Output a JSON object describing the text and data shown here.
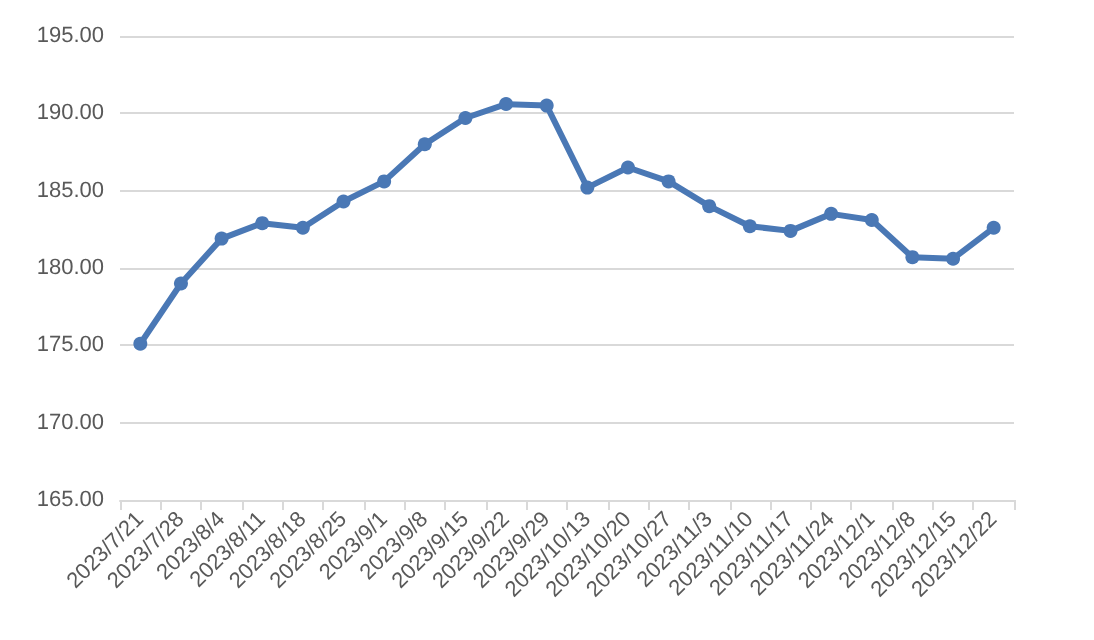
{
  "chart_data": {
    "type": "line",
    "categories": [
      "2023/7/21",
      "2023/7/28",
      "2023/8/4",
      "2023/8/11",
      "2023/8/18",
      "2023/8/25",
      "2023/9/1",
      "2023/9/8",
      "2023/9/15",
      "2023/9/22",
      "2023/9/29",
      "2023/10/13",
      "2023/10/20",
      "2023/10/27",
      "2023/11/3",
      "2023/11/10",
      "2023/11/17",
      "2023/11/24",
      "2023/12/1",
      "2023/12/8",
      "2023/12/15",
      "2023/12/22"
    ],
    "series": [
      {
        "color": "#4a78b5",
        "values": [
          175.1,
          179.0,
          181.9,
          182.9,
          182.6,
          184.3,
          185.6,
          188.0,
          189.7,
          190.6,
          190.5,
          185.2,
          186.5,
          185.6,
          184.0,
          182.7,
          182.4,
          183.5,
          183.1,
          180.7,
          180.6,
          182.6
        ]
      }
    ],
    "ylim": [
      165,
      195
    ],
    "yticks": [
      {
        "value": 165,
        "label": "165.00"
      },
      {
        "value": 170,
        "label": "170.00"
      },
      {
        "value": 175,
        "label": "175.00"
      },
      {
        "value": 180,
        "label": "180.00"
      },
      {
        "value": 185,
        "label": "185.00"
      },
      {
        "value": 190,
        "label": "190.00"
      },
      {
        "value": 195,
        "label": "195.00"
      }
    ],
    "grid": "y",
    "marker": "circle",
    "line_style": "solid"
  }
}
